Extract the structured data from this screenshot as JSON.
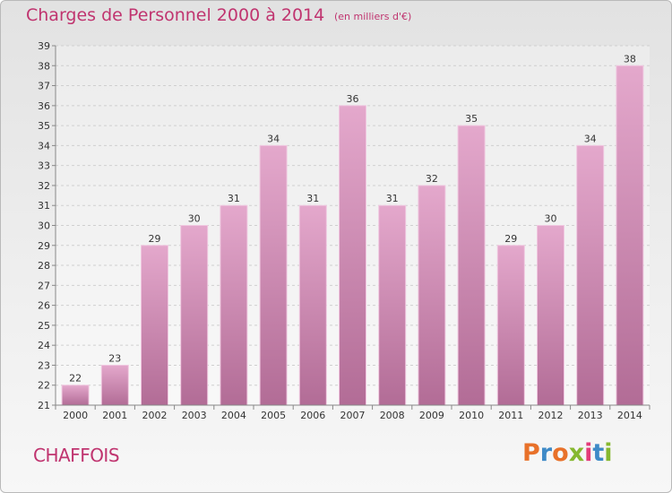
{
  "header": {
    "title": "Charges de Personnel 2000 à 2014",
    "subtitle": "(en milliers d'€)"
  },
  "footer": {
    "commune": "CHAFFOIS",
    "brand": "Proxiti",
    "brand_colors": [
      "#e8712a",
      "#3e8ac7",
      "#e8712a",
      "#86b82f",
      "#e33b7a",
      "#3e8ac7",
      "#86b82f"
    ]
  },
  "chart_data": {
    "type": "bar",
    "categories": [
      "2000",
      "2001",
      "2002",
      "2003",
      "2004",
      "2005",
      "2006",
      "2007",
      "2008",
      "2009",
      "2010",
      "2011",
      "2012",
      "2013",
      "2014"
    ],
    "values": [
      22,
      23,
      29,
      30,
      31,
      34,
      31,
      36,
      31,
      32,
      35,
      29,
      30,
      34,
      38
    ],
    "ylim": [
      21,
      39
    ],
    "yticks": [
      21,
      22,
      23,
      24,
      25,
      26,
      27,
      28,
      29,
      30,
      31,
      32,
      33,
      34,
      35,
      36,
      37,
      38,
      39
    ],
    "grid": true,
    "bar_color_top": "#e4a8cc",
    "bar_color_bottom": "#b26c96",
    "data_labels": true
  }
}
